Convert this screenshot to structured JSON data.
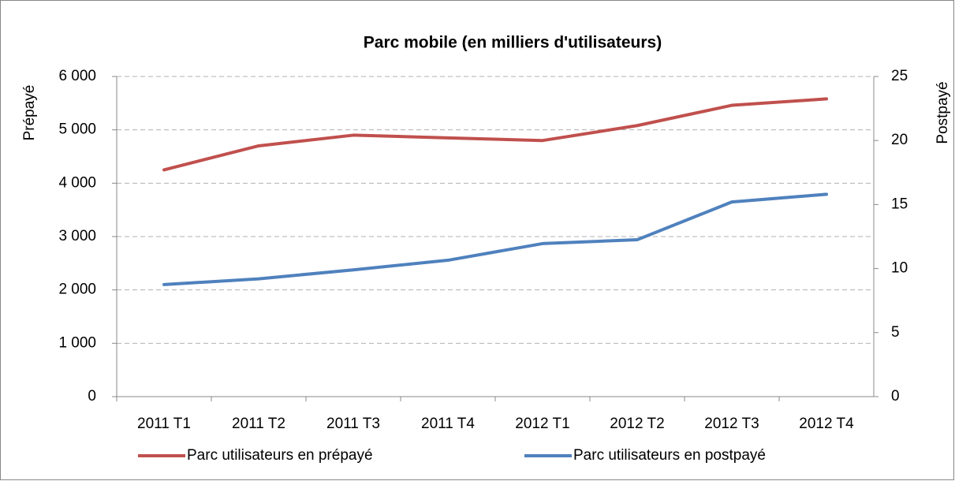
{
  "chart_data": {
    "type": "line",
    "title": "Parc mobile (en milliers d'utilisateurs)",
    "y_label": "Prépayé",
    "y2_label": "Postpayé",
    "categories": [
      "2011 T1",
      "2011 T2",
      "2011 T3",
      "2011 T4",
      "2012 T1",
      "2012 T2",
      "2012 T3",
      "2012 T4"
    ],
    "series": [
      {
        "name": "Parc utilisateurs en prépayé",
        "color": "#c0504d",
        "values": [
          4250,
          4700,
          4900,
          4850,
          4800,
          5080,
          5460,
          5580
        ]
      },
      {
        "name": "Parc utilisateurs en postpayé",
        "color": "#4f81bd",
        "axis": "y2",
        "values": [
          8.75,
          9.2,
          9.9,
          10.65,
          11.95,
          12.25,
          15.2,
          15.8
        ]
      }
    ],
    "ylim": [
      0,
      6000
    ],
    "yticks": [
      0,
      {
        "value": 1000,
        "label": "1 000"
      },
      {
        "value": 2000,
        "label": "2 000"
      },
      {
        "value": 3000,
        "label": "3 000"
      },
      {
        "value": 4000,
        "label": "4 000"
      },
      {
        "value": 5000,
        "label": "5 000"
      },
      {
        "value": 6000,
        "label": "6 000"
      }
    ],
    "y2lim": [
      0,
      25
    ],
    "y2ticks": [
      0,
      5,
      10,
      15,
      20,
      25
    ],
    "grid": true,
    "legend": "bottom"
  }
}
